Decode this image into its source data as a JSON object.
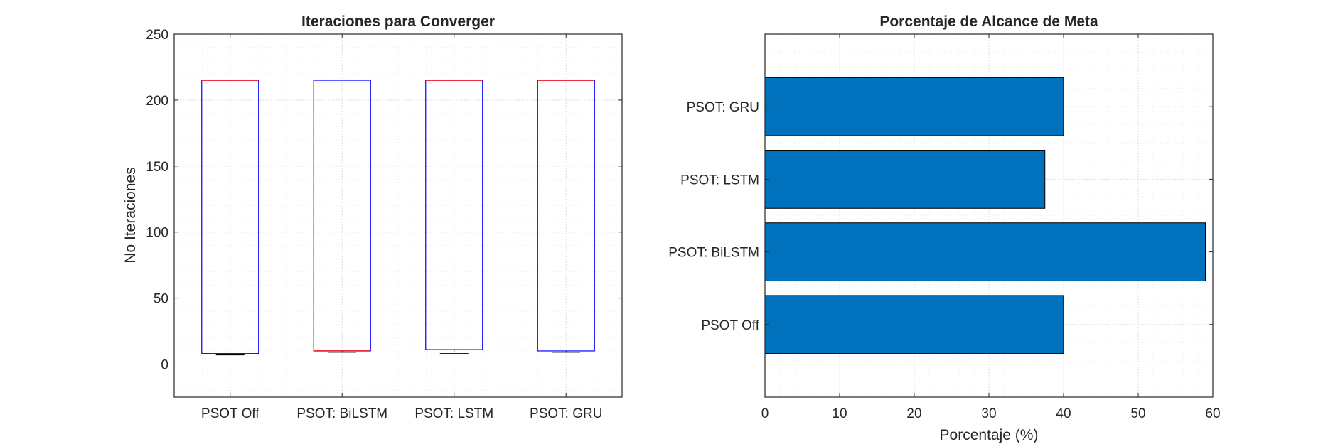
{
  "chart_data": [
    {
      "type": "box",
      "title": "Iteraciones para Converger",
      "xlabel": "",
      "ylabel": "No Iteraciones",
      "ylim": [
        -25,
        250
      ],
      "yticks": [
        0,
        50,
        100,
        150,
        200,
        250
      ],
      "grid": true,
      "minor_grid": true,
      "categories": [
        "PSOT Off",
        "PSOT: BiLSTM",
        "PSOT: LSTM",
        "PSOT: GRU"
      ],
      "boxes": [
        {
          "min": 7,
          "q1": 8,
          "median": 215,
          "q3": 215,
          "max": 215
        },
        {
          "min": 9,
          "q1": 10,
          "median": 10,
          "q3": 215,
          "max": 215
        },
        {
          "min": 8,
          "q1": 11,
          "median": 215,
          "q3": 215,
          "max": 215
        },
        {
          "min": 9,
          "q1": 10,
          "median": 215,
          "q3": 215,
          "max": 215
        }
      ],
      "box_color": "#0000ff",
      "median_color": "#ff0000",
      "whisker_color": "#000000"
    },
    {
      "type": "barh",
      "title": "Porcentaje de Alcance de Meta",
      "xlabel": "Porcentaje (%)",
      "ylabel": "",
      "xlim": [
        0,
        60
      ],
      "xticks": [
        0,
        10,
        20,
        30,
        40,
        50,
        60
      ],
      "grid": true,
      "minor_grid": true,
      "categories": [
        "PSOT Off",
        "PSOT: BiLSTM",
        "PSOT: LSTM",
        "PSOT: GRU"
      ],
      "values": [
        40,
        59,
        37.5,
        40
      ],
      "bar_color": "#0072bd"
    }
  ]
}
